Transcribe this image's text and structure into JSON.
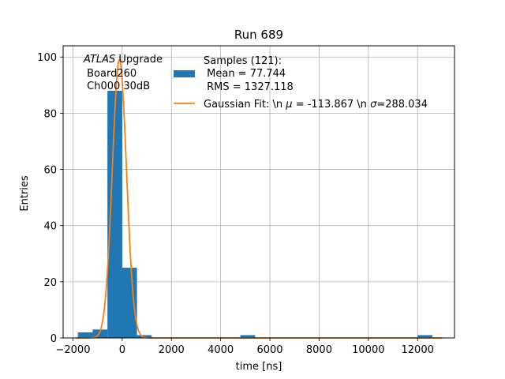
{
  "chart_data": {
    "type": "bar",
    "title": "Run 689",
    "xlabel": "time [ns]",
    "ylabel": "Entries",
    "xlim": [
      -2400,
      13500
    ],
    "ylim": [
      0,
      104
    ],
    "xticks": [
      -2000,
      0,
      2000,
      4000,
      6000,
      8000,
      10000,
      12000
    ],
    "yticks": [
      0,
      20,
      40,
      60,
      80,
      100
    ],
    "grid": true,
    "legend_position": "top-right",
    "annotation": {
      "prefix_italic": "ATLAS",
      "prefix_rest": " Upgrade",
      "line2": " Board260",
      "line3": " Ch000 30dB"
    },
    "histogram": {
      "name": "Samples (121):\n Mean = 77.744\n RMS = 1327.118",
      "legend_lines": [
        "Samples (121):",
        " Mean = 77.744",
        " RMS = 1327.118"
      ],
      "color": "#1f77b4",
      "bin_width": 600,
      "bins": [
        {
          "x": -1800,
          "count": 2
        },
        {
          "x": -1200,
          "count": 3
        },
        {
          "x": -600,
          "count": 88
        },
        {
          "x": 0,
          "count": 25
        },
        {
          "x": 600,
          "count": 1
        },
        {
          "x": 4800,
          "count": 1
        },
        {
          "x": 12000,
          "count": 1
        }
      ]
    },
    "fit": {
      "name": "Gaussian Fit: \\n μ = -113.867 \\n σ=288.034",
      "legend_prefix": "Gaussian Fit: \\n ",
      "legend_mu_sym": "μ",
      "legend_mu_rest": " = -113.867 \\n ",
      "legend_sigma_sym": "σ",
      "legend_sigma_rest": "=288.034",
      "color": "#ff7f0e",
      "mu": -113.867,
      "sigma": 288.034,
      "amplitude": 99,
      "x_range": [
        -1900,
        13000
      ]
    }
  }
}
